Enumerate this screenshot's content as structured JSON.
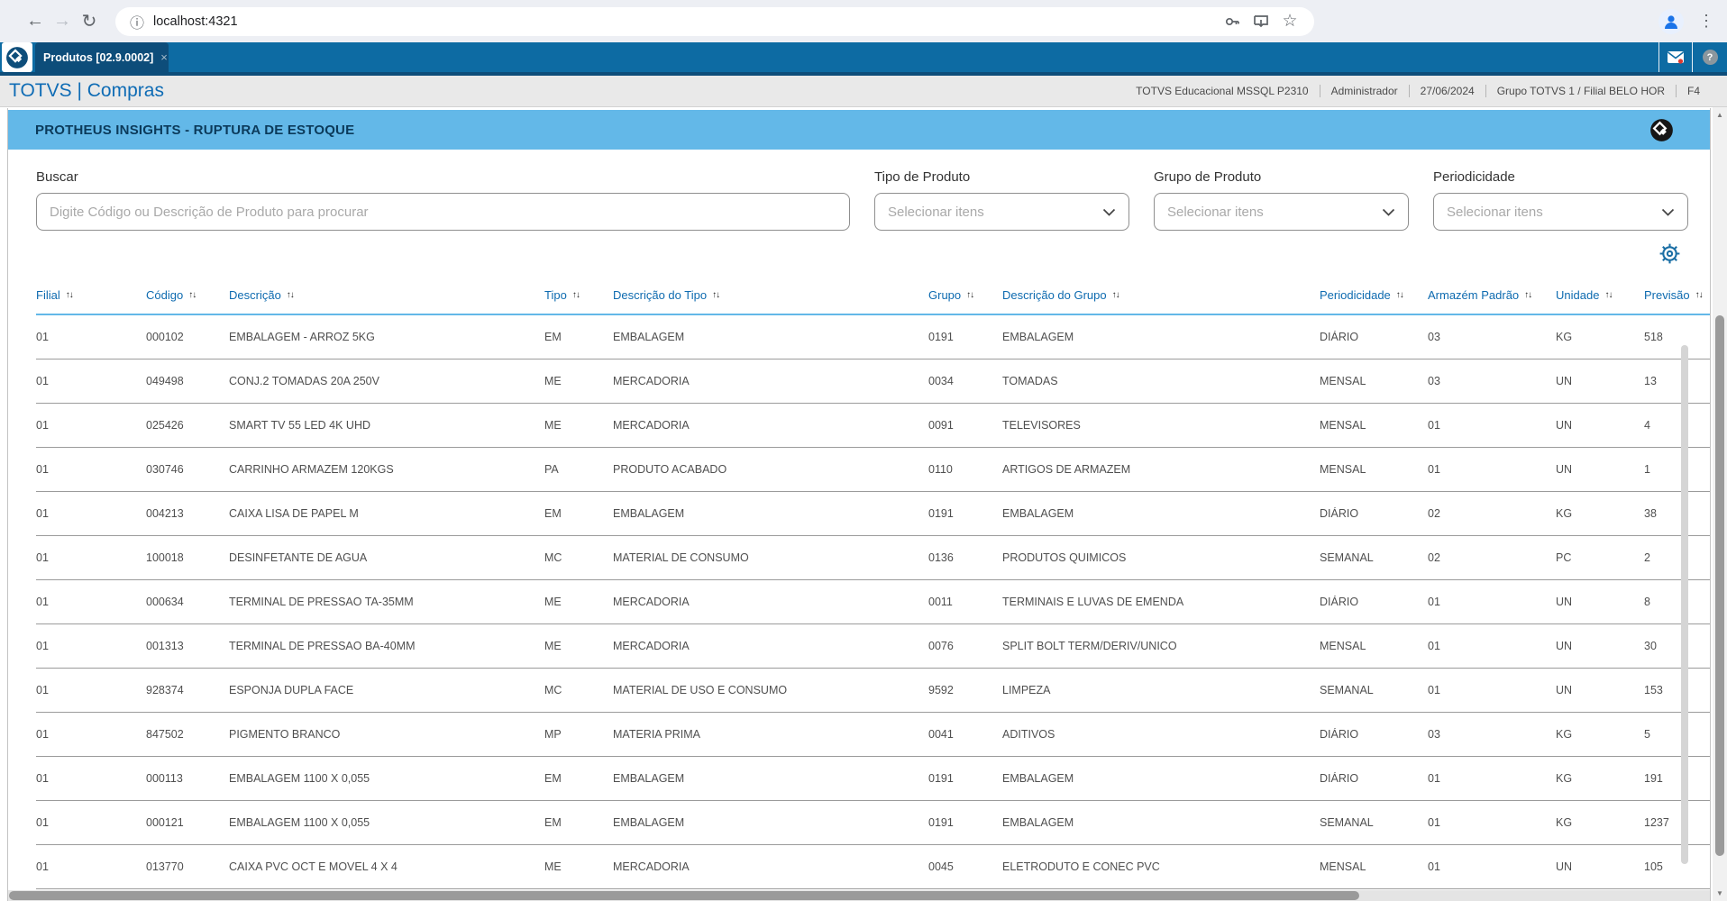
{
  "browser": {
    "url": "localhost:4321",
    "glyphs": {
      "back": "←",
      "forward": "→",
      "reload": "↻",
      "site_info": "ⓘ",
      "bookmark": "☆",
      "menu": "⋮"
    }
  },
  "tab": {
    "label": "Produtos [02.9.0002]",
    "close_glyph": "×"
  },
  "help_glyph": "?",
  "app_header": {
    "title": "TOTVS | Compras",
    "info": [
      "TOTVS Educacional MSSQL P2310",
      "Administrador",
      "27/06/2024",
      "Grupo TOTVS 1 / Filial BELO HOR",
      "F4"
    ]
  },
  "insights": {
    "title": "PROTHEUS INSIGHTS - RUPTURA DE ESTOQUE"
  },
  "filters": {
    "search": {
      "label": "Buscar",
      "placeholder": "Digite Código ou Descrição de Produto para procurar"
    },
    "selects": [
      {
        "label": "Tipo de Produto",
        "placeholder": "Selecionar itens"
      },
      {
        "label": "Grupo de Produto",
        "placeholder": "Selecionar itens"
      },
      {
        "label": "Periodicidade",
        "placeholder": "Selecionar itens"
      }
    ]
  },
  "table": {
    "sort_glyph": "↑↓",
    "columns": [
      {
        "key": "filial",
        "label": "Filial"
      },
      {
        "key": "codigo",
        "label": "Código"
      },
      {
        "key": "descricao",
        "label": "Descrição"
      },
      {
        "key": "tipo",
        "label": "Tipo"
      },
      {
        "key": "descricao-do-tipo",
        "label": "Descrição do Tipo"
      },
      {
        "key": "grupo",
        "label": "Grupo"
      },
      {
        "key": "descricao-do-grupo",
        "label": "Descrição do Grupo"
      },
      {
        "key": "periodicidade",
        "label": "Periodicidade"
      },
      {
        "key": "armazem-padrao",
        "label": "Armazém Padrão"
      },
      {
        "key": "unidade",
        "label": "Unidade"
      },
      {
        "key": "previsao",
        "label": "Previsão"
      }
    ],
    "rows": [
      [
        "01",
        "000102",
        "EMBALAGEM - ARROZ 5KG",
        "EM",
        "EMBALAGEM",
        "0191",
        "EMBALAGEM",
        "DIÁRIO",
        "03",
        "KG",
        "518"
      ],
      [
        "01",
        "049498",
        "CONJ.2 TOMADAS 20A 250V",
        "ME",
        "MERCADORIA",
        "0034",
        "TOMADAS",
        "MENSAL",
        "03",
        "UN",
        "13"
      ],
      [
        "01",
        "025426",
        "SMART TV 55 LED 4K UHD",
        "ME",
        "MERCADORIA",
        "0091",
        "TELEVISORES",
        "MENSAL",
        "01",
        "UN",
        "4"
      ],
      [
        "01",
        "030746",
        "CARRINHO ARMAZEM 120KGS",
        "PA",
        "PRODUTO ACABADO",
        "0110",
        "ARTIGOS DE ARMAZEM",
        "MENSAL",
        "01",
        "UN",
        "1"
      ],
      [
        "01",
        "004213",
        "CAIXA LISA DE PAPEL M",
        "EM",
        "EMBALAGEM",
        "0191",
        "EMBALAGEM",
        "DIÁRIO",
        "02",
        "KG",
        "38"
      ],
      [
        "01",
        "100018",
        "DESINFETANTE DE AGUA",
        "MC",
        "MATERIAL DE CONSUMO",
        "0136",
        "PRODUTOS QUIMICOS",
        "SEMANAL",
        "02",
        "PC",
        "2"
      ],
      [
        "01",
        "000634",
        "TERMINAL DE PRESSAO TA-35MM",
        "ME",
        "MERCADORIA",
        "0011",
        "TERMINAIS E LUVAS DE EMENDA",
        "DIÁRIO",
        "01",
        "UN",
        "8"
      ],
      [
        "01",
        "001313",
        "TERMINAL DE PRESSAO BA-40MM",
        "ME",
        "MERCADORIA",
        "0076",
        "SPLIT BOLT TERM/DERIV/UNICO",
        "MENSAL",
        "01",
        "UN",
        "30"
      ],
      [
        "01",
        "928374",
        "ESPONJA DUPLA FACE",
        "MC",
        "MATERIAL DE USO E CONSUMO",
        "9592",
        "LIMPEZA",
        "SEMANAL",
        "01",
        "UN",
        "153"
      ],
      [
        "01",
        "847502",
        "PIGMENTO BRANCO",
        "MP",
        "MATERIA PRIMA",
        "0041",
        "ADITIVOS",
        "DIÁRIO",
        "03",
        "KG",
        "5"
      ],
      [
        "01",
        "000113",
        "EMBALAGEM 1100 X 0,055",
        "EM",
        "EMBALAGEM",
        "0191",
        "EMBALAGEM",
        "DIÁRIO",
        "01",
        "KG",
        "191"
      ],
      [
        "01",
        "000121",
        "EMBALAGEM 1100 X 0,055",
        "EM",
        "EMBALAGEM",
        "0191",
        "EMBALAGEM",
        "SEMANAL",
        "01",
        "KG",
        "1237"
      ],
      [
        "01",
        "013770",
        "CAIXA PVC OCT E MOVEL 4 X 4",
        "ME",
        "MERCADORIA",
        "0045",
        "ELETRODUTO E CONEC PVC",
        "MENSAL",
        "01",
        "UN",
        "105"
      ]
    ]
  },
  "scrollbar_glyphs": {
    "up": "▲",
    "down": "▼"
  },
  "colors": {
    "accent_blue": "#0d6ba3",
    "active_tab": "#0d4d7a",
    "insights_bar": "#63b8e8",
    "header_link": "#0e6bb0",
    "notification_dot": "#e03a2f"
  }
}
